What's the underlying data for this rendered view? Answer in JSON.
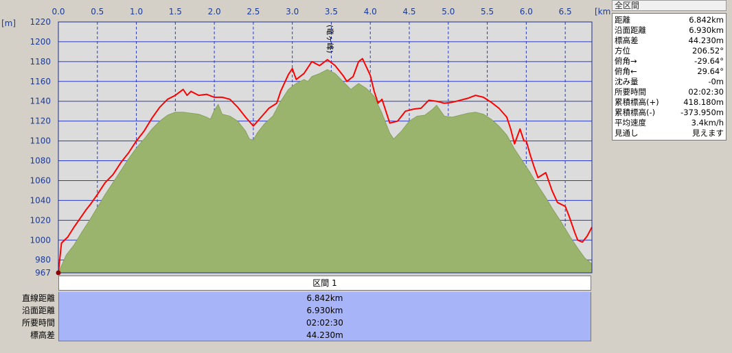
{
  "chart_data": {
    "type": "area",
    "x_unit_label": "[km]",
    "y_unit_label": "[m]",
    "x_ticks": [
      "0.0",
      "0.5",
      "1.0",
      "1.5",
      "2.0",
      "2.5",
      "3.0",
      "3.5",
      "4.0",
      "4.5",
      "5.0",
      "5.5",
      "6.0",
      "6.5"
    ],
    "y_ticks": [
      "1220",
      "1200",
      "1180",
      "1160",
      "1140",
      "1120",
      "1100",
      "1080",
      "1060",
      "1040",
      "1020",
      "1000",
      "980",
      "967"
    ],
    "xlim": [
      0,
      6.842
    ],
    "ylim": [
      967,
      1220
    ],
    "grid": true,
    "peak_annotation": {
      "label": "(竜ヶ峰)",
      "x": 3.45
    },
    "series": [
      {
        "color": "#ff0000",
        "points": [
          [
            0.0,
            967
          ],
          [
            0.04,
            997
          ],
          [
            0.12,
            1003
          ],
          [
            0.2,
            1013
          ],
          [
            0.28,
            1022
          ],
          [
            0.35,
            1030
          ],
          [
            0.42,
            1037
          ],
          [
            0.5,
            1046
          ],
          [
            0.6,
            1058
          ],
          [
            0.7,
            1066
          ],
          [
            0.8,
            1078
          ],
          [
            0.9,
            1088
          ],
          [
            1.0,
            1100
          ],
          [
            1.1,
            1110
          ],
          [
            1.2,
            1123
          ],
          [
            1.3,
            1134
          ],
          [
            1.4,
            1142
          ],
          [
            1.5,
            1146
          ],
          [
            1.6,
            1152
          ],
          [
            1.65,
            1146
          ],
          [
            1.7,
            1150
          ],
          [
            1.8,
            1146
          ],
          [
            1.9,
            1147
          ],
          [
            2.0,
            1144
          ],
          [
            2.1,
            1144
          ],
          [
            2.2,
            1142
          ],
          [
            2.3,
            1134
          ],
          [
            2.4,
            1124
          ],
          [
            2.5,
            1115
          ],
          [
            2.6,
            1124
          ],
          [
            2.7,
            1133
          ],
          [
            2.8,
            1138
          ],
          [
            2.85,
            1150
          ],
          [
            2.95,
            1167
          ],
          [
            3.0,
            1173
          ],
          [
            3.05,
            1162
          ],
          [
            3.15,
            1168
          ],
          [
            3.25,
            1180
          ],
          [
            3.35,
            1176
          ],
          [
            3.45,
            1182
          ],
          [
            3.55,
            1176
          ],
          [
            3.65,
            1166
          ],
          [
            3.7,
            1160
          ],
          [
            3.78,
            1165
          ],
          [
            3.85,
            1180
          ],
          [
            3.9,
            1183
          ],
          [
            4.0,
            1166
          ],
          [
            4.05,
            1150
          ],
          [
            4.1,
            1138
          ],
          [
            4.15,
            1142
          ],
          [
            4.25,
            1118
          ],
          [
            4.35,
            1120
          ],
          [
            4.45,
            1130
          ],
          [
            4.55,
            1132
          ],
          [
            4.65,
            1133
          ],
          [
            4.75,
            1141
          ],
          [
            4.85,
            1140
          ],
          [
            4.95,
            1138
          ],
          [
            5.05,
            1139
          ],
          [
            5.15,
            1141
          ],
          [
            5.25,
            1143
          ],
          [
            5.35,
            1146
          ],
          [
            5.45,
            1144
          ],
          [
            5.55,
            1139
          ],
          [
            5.65,
            1133
          ],
          [
            5.75,
            1124
          ],
          [
            5.8,
            1112
          ],
          [
            5.85,
            1097
          ],
          [
            5.92,
            1112
          ],
          [
            5.97,
            1100
          ],
          [
            6.0,
            1100
          ],
          [
            6.05,
            1086
          ],
          [
            6.1,
            1074
          ],
          [
            6.15,
            1063
          ],
          [
            6.25,
            1068
          ],
          [
            6.33,
            1050
          ],
          [
            6.4,
            1038
          ],
          [
            6.5,
            1034
          ],
          [
            6.55,
            1024
          ],
          [
            6.62,
            1008
          ],
          [
            6.66,
            1000
          ],
          [
            6.72,
            998
          ],
          [
            6.78,
            1004
          ],
          [
            6.842,
            1013
          ]
        ]
      },
      {
        "color": "#9ab46e",
        "points": [
          [
            0.0,
            967
          ],
          [
            0.1,
            985
          ],
          [
            0.2,
            995
          ],
          [
            0.3,
            1008
          ],
          [
            0.4,
            1020
          ],
          [
            0.5,
            1033
          ],
          [
            0.6,
            1046
          ],
          [
            0.7,
            1058
          ],
          [
            0.8,
            1070
          ],
          [
            0.9,
            1082
          ],
          [
            1.0,
            1093
          ],
          [
            1.1,
            1102
          ],
          [
            1.2,
            1112
          ],
          [
            1.3,
            1120
          ],
          [
            1.4,
            1126
          ],
          [
            1.5,
            1129
          ],
          [
            1.6,
            1129
          ],
          [
            1.7,
            1128
          ],
          [
            1.8,
            1127
          ],
          [
            1.9,
            1124
          ],
          [
            1.95,
            1122
          ],
          [
            2.0,
            1131
          ],
          [
            2.05,
            1137
          ],
          [
            2.1,
            1127
          ],
          [
            2.2,
            1125
          ],
          [
            2.3,
            1120
          ],
          [
            2.4,
            1110
          ],
          [
            2.45,
            1102
          ],
          [
            2.5,
            1101
          ],
          [
            2.55,
            1108
          ],
          [
            2.65,
            1118
          ],
          [
            2.75,
            1125
          ],
          [
            2.85,
            1140
          ],
          [
            2.95,
            1152
          ],
          [
            3.05,
            1158
          ],
          [
            3.15,
            1162
          ],
          [
            3.2,
            1160
          ],
          [
            3.25,
            1165
          ],
          [
            3.35,
            1168
          ],
          [
            3.45,
            1172
          ],
          [
            3.55,
            1168
          ],
          [
            3.65,
            1160
          ],
          [
            3.75,
            1152
          ],
          [
            3.85,
            1158
          ],
          [
            3.95,
            1153
          ],
          [
            4.05,
            1145
          ],
          [
            4.15,
            1128
          ],
          [
            4.25,
            1108
          ],
          [
            4.3,
            1102
          ],
          [
            4.4,
            1110
          ],
          [
            4.5,
            1120
          ],
          [
            4.6,
            1125
          ],
          [
            4.7,
            1126
          ],
          [
            4.8,
            1132
          ],
          [
            4.85,
            1136
          ],
          [
            4.95,
            1125
          ],
          [
            5.05,
            1124
          ],
          [
            5.15,
            1126
          ],
          [
            5.25,
            1128
          ],
          [
            5.35,
            1129
          ],
          [
            5.45,
            1127
          ],
          [
            5.55,
            1122
          ],
          [
            5.65,
            1115
          ],
          [
            5.75,
            1106
          ],
          [
            5.85,
            1092
          ],
          [
            5.95,
            1080
          ],
          [
            6.05,
            1068
          ],
          [
            6.15,
            1055
          ],
          [
            6.25,
            1043
          ],
          [
            6.35,
            1030
          ],
          [
            6.45,
            1018
          ],
          [
            6.55,
            1005
          ],
          [
            6.65,
            993
          ],
          [
            6.75,
            982
          ],
          [
            6.842,
            976
          ]
        ]
      }
    ]
  },
  "segment_table": {
    "header": "区間 1",
    "rows": [
      {
        "label": "直線距離",
        "value": "6.842km"
      },
      {
        "label": "沿面距離",
        "value": "6.930km"
      },
      {
        "label": "所要時間",
        "value": "02:02:30"
      },
      {
        "label": "標高差",
        "value": "44.230m"
      }
    ]
  },
  "summary_panel": {
    "title": "全区間",
    "rows": [
      {
        "label": "距離",
        "value": "6.842km"
      },
      {
        "label": "沿面距離",
        "value": "6.930km"
      },
      {
        "label": "標高差",
        "value": "44.230m"
      },
      {
        "label": "方位",
        "value": "206.52°"
      },
      {
        "label": "俯角→",
        "value": "-29.64°"
      },
      {
        "label": "俯角←",
        "value": "29.64°"
      },
      {
        "label": "沈み量",
        "value": "-0m"
      },
      {
        "label": "所要時間",
        "value": "02:02:30"
      },
      {
        "label": "累積標高(+)",
        "value": "418.180m"
      },
      {
        "label": "累積標高(-)",
        "value": "-373.950m"
      },
      {
        "label": "平均速度",
        "value": "3.4km/h"
      },
      {
        "label": "見通し",
        "value": "見えます"
      }
    ]
  }
}
